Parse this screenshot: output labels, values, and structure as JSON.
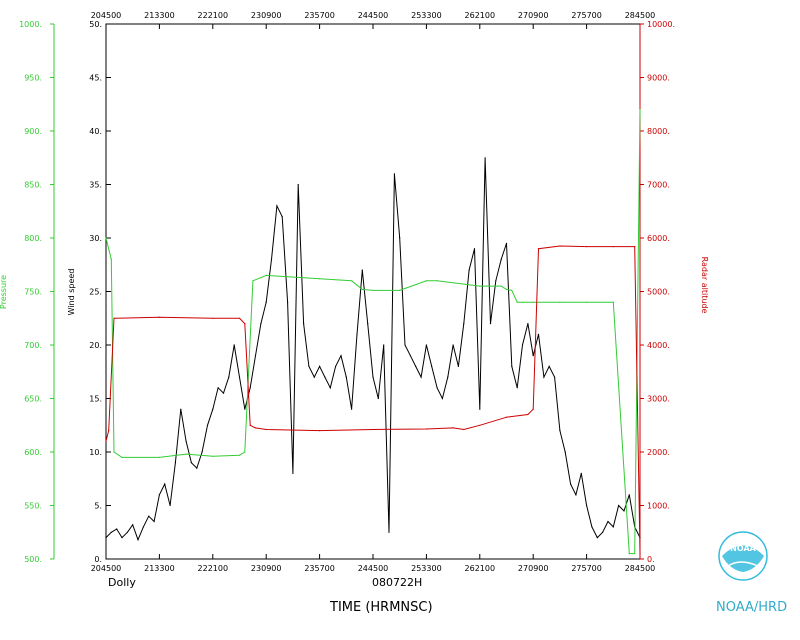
{
  "chart_data": {
    "type": "line",
    "storm": "Dolly",
    "flight_id": "080722H",
    "xlabel": "TIME (HRMNSC)",
    "x_ticks": [
      "204500",
      "213300",
      "222100",
      "230900",
      "235700",
      "244500",
      "253300",
      "262100",
      "270900",
      "275700",
      "284500"
    ],
    "x_range_ticks": [
      0,
      10
    ],
    "axes": {
      "pressure": {
        "label": "Pressure",
        "color": "#33cc33",
        "range": [
          500,
          1000
        ],
        "step": 50,
        "suffix": "."
      },
      "wind": {
        "label": "Wind speed",
        "color": "#000000",
        "range": [
          0,
          50
        ],
        "step": 5,
        "suffix": "."
      },
      "altitude": {
        "label": "Radar altitude",
        "color": "#cc0000",
        "range": [
          0,
          10000
        ],
        "step": 1000,
        "suffix": "."
      }
    },
    "series": [
      {
        "name": "Wind speed",
        "axis": "wind",
        "color": "#000000",
        "x": [
          0,
          0.1,
          0.2,
          0.3,
          0.4,
          0.5,
          0.6,
          0.7,
          0.8,
          0.9,
          1.0,
          1.1,
          1.2,
          1.3,
          1.4,
          1.5,
          1.6,
          1.7,
          1.8,
          1.9,
          2.0,
          2.1,
          2.2,
          2.3,
          2.4,
          2.5,
          2.6,
          2.7,
          2.8,
          2.9,
          3.0,
          3.1,
          3.2,
          3.3,
          3.4,
          3.5,
          3.6,
          3.7,
          3.8,
          3.9,
          4.0,
          4.1,
          4.2,
          4.3,
          4.4,
          4.5,
          4.6,
          4.7,
          4.8,
          4.9,
          5.0,
          5.1,
          5.2,
          5.3,
          5.4,
          5.5,
          5.6,
          5.7,
          5.8,
          5.9,
          6.0,
          6.1,
          6.2,
          6.3,
          6.4,
          6.5,
          6.6,
          6.7,
          6.8,
          6.9,
          7.0,
          7.1,
          7.2,
          7.3,
          7.4,
          7.5,
          7.6,
          7.7,
          7.8,
          7.9,
          8.0,
          8.1,
          8.2,
          8.3,
          8.4,
          8.5,
          8.6,
          8.7,
          8.8,
          8.9,
          9.0,
          9.1,
          9.2,
          9.3,
          9.4,
          9.5,
          9.6,
          9.7,
          9.8,
          9.9,
          10.0
        ],
        "values": [
          2.0,
          2.5,
          2.8,
          2.0,
          2.5,
          3.2,
          1.8,
          3.0,
          4.0,
          3.5,
          6.0,
          7.0,
          5.0,
          9.0,
          14.0,
          11.0,
          9.0,
          8.5,
          10.0,
          12.5,
          14.0,
          16.0,
          15.5,
          17.0,
          20.0,
          17.0,
          14.0,
          16.0,
          19.0,
          22.0,
          24.0,
          28.0,
          33.0,
          32.0,
          24.0,
          8.0,
          35.0,
          22.0,
          18.0,
          17.0,
          18.0,
          17.0,
          16.0,
          18.0,
          19.0,
          17.0,
          14.0,
          21.0,
          27.0,
          22.0,
          17.0,
          15.0,
          20.0,
          2.5,
          36.0,
          30.0,
          20.0,
          19.0,
          18.0,
          17.0,
          20.0,
          18.0,
          16.0,
          15.0,
          17.0,
          20.0,
          18.0,
          22.0,
          27.0,
          29.0,
          14.0,
          37.5,
          22.0,
          26.0,
          28.0,
          29.5,
          18.0,
          16.0,
          20.0,
          22.0,
          19.0,
          21.0,
          17.0,
          18.0,
          17.0,
          12.0,
          10.0,
          7.0,
          6.0,
          8.0,
          5.0,
          3.0,
          2.0,
          2.5,
          3.5,
          3.0,
          5.0,
          4.5,
          6.0,
          3.0,
          2.0
        ]
      },
      {
        "name": "Pressure",
        "axis": "pressure",
        "color": "#33cc33",
        "x": [
          0,
          0.1,
          0.15,
          0.3,
          1.0,
          1.5,
          2.0,
          2.5,
          2.6,
          2.75,
          3.0,
          4.0,
          4.6,
          4.8,
          5.0,
          5.5,
          6.0,
          6.2,
          7.0,
          7.4,
          7.5,
          7.6,
          7.7,
          7.8,
          8.0,
          8.5,
          9.0,
          9.5,
          9.8,
          9.9,
          10.0
        ],
        "values": [
          800,
          780,
          600,
          595,
          595,
          598,
          596,
          597,
          600,
          760,
          765,
          762,
          760,
          752,
          751,
          751,
          760,
          760,
          755,
          755,
          752,
          751,
          740,
          740,
          740,
          740,
          740,
          740,
          505,
          505,
          920
        ]
      },
      {
        "name": "Radar altitude",
        "axis": "altitude",
        "color": "#cc0000",
        "x": [
          0,
          0.05,
          0.15,
          1.0,
          2.0,
          2.5,
          2.6,
          2.7,
          2.8,
          3.0,
          4.0,
          5.0,
          6.0,
          6.5,
          6.7,
          7.0,
          7.5,
          7.9,
          8.0,
          8.1,
          8.5,
          9.0,
          9.5,
          9.9,
          10.0
        ],
        "values": [
          2200,
          2400,
          4500,
          4520,
          4500,
          4500,
          4400,
          2500,
          2450,
          2420,
          2400,
          2420,
          2430,
          2450,
          2420,
          2500,
          2650,
          2700,
          2800,
          5800,
          5850,
          5840,
          5840,
          5840,
          100
        ]
      }
    ],
    "grid": false,
    "legend": "none"
  },
  "footer": {
    "left_label": "Dolly",
    "center_label": "080722H",
    "time_label": "TIME (HRMNSC)",
    "logo_text": "NOAA",
    "brand": "NOAA/HRD"
  }
}
